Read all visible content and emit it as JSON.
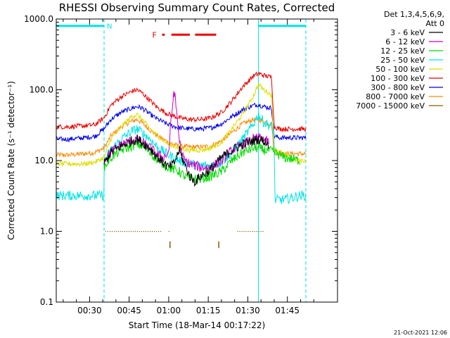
{
  "chart_data": {
    "type": "line",
    "title": "RHESSI Observing Summary Count Rates, Corrected",
    "xlabel": "Start Time (18-Mar-14 00:17:22)",
    "ylabel": "Corrected Count Rate (s⁻¹ detector⁻¹)",
    "yscale": "log",
    "ylim": [
      0.1,
      1000
    ],
    "xlim_minutes": [
      17.37,
      124.0
    ],
    "x_ticks": [
      {
        "m": 30,
        "label": "00:30"
      },
      {
        "m": 45,
        "label": "00:45"
      },
      {
        "m": 60,
        "label": "01:00"
      },
      {
        "m": 75,
        "label": "01:15"
      },
      {
        "m": 90,
        "label": "01:30"
      },
      {
        "m": 105,
        "label": "01:45"
      }
    ],
    "y_ticks": [
      {
        "v": 1000,
        "label": "1000.0"
      },
      {
        "v": 100,
        "label": "100.0"
      },
      {
        "v": 10,
        "label": "10.0"
      },
      {
        "v": 1,
        "label": "1.0"
      },
      {
        "v": 0.1,
        "label": "0.1"
      }
    ],
    "legend_header": [
      "Det 1,3,4,5,6,9,",
      "Att 0"
    ],
    "legend_position": "right",
    "footer_date": "21-Oct-2021 12:06",
    "night_label": "N",
    "flare_label": "F",
    "night_bands": [
      [
        17.37,
        35.5
      ],
      [
        94.0,
        112.0
      ]
    ],
    "night_bar_y": 800,
    "flare_segments": [
      [
        57.5,
        58.5
      ],
      [
        61.0,
        68.0
      ],
      [
        70.0,
        78.0
      ]
    ],
    "flare_bar_y": 600,
    "series": [
      {
        "name": "3 - 6 keV",
        "color": "#000000",
        "x": [
          35.5,
          38,
          42,
          46,
          48,
          50,
          53,
          55,
          57,
          60,
          62,
          64,
          66,
          68,
          70,
          72,
          75,
          78,
          80,
          84,
          88,
          92,
          94,
          96,
          98
        ],
        "values": [
          9,
          13,
          16,
          19,
          20,
          18,
          15,
          12,
          10,
          8,
          9,
          14,
          9,
          6,
          5,
          6,
          7,
          9,
          11,
          14,
          17,
          19,
          20,
          19,
          17
        ]
      },
      {
        "name": "6 - 12 keV",
        "color": "#cc00cc",
        "x": [
          35.5,
          38,
          42,
          46,
          48,
          50,
          53,
          56,
          58,
          60,
          61,
          62,
          63,
          64,
          65,
          66,
          68,
          72,
          76,
          80,
          84,
          88,
          92,
          94,
          98
        ],
        "values": [
          10,
          13,
          17,
          19,
          20,
          18,
          15,
          12,
          11,
          13,
          40,
          100,
          50,
          20,
          12,
          10,
          9,
          8,
          8,
          10,
          14,
          17,
          20,
          21,
          18
        ]
      },
      {
        "name": "12 - 25 keV",
        "color": "#00dd00",
        "x": [
          35.5,
          38,
          42,
          46,
          48,
          50,
          53,
          56,
          60,
          64,
          66,
          68,
          72,
          76,
          80,
          84,
          88,
          92,
          94,
          96,
          98,
          100,
          104,
          110
        ],
        "values": [
          8,
          11,
          14,
          16,
          17,
          16,
          13,
          10,
          8,
          7,
          6,
          5.5,
          5.5,
          6,
          7,
          10,
          13,
          15,
          15,
          14,
          14,
          13,
          11,
          10
        ]
      },
      {
        "name": "25 - 50 keV",
        "color": "#00e5e5",
        "x": [
          17.37,
          35.4,
          35.6,
          38,
          42,
          46,
          48,
          50,
          53,
          56,
          60,
          64,
          68,
          72,
          76,
          80,
          84,
          88,
          92,
          94,
          96,
          99,
          100,
          100.2,
          104,
          110,
          112
        ],
        "values": [
          3.2,
          3.2,
          10,
          14,
          20,
          26,
          28,
          25,
          20,
          15,
          12,
          10,
          9,
          8.5,
          8.5,
          9.5,
          13,
          20,
          32,
          45,
          35,
          30,
          25,
          2.8,
          2.8,
          3.2,
          3.2
        ]
      },
      {
        "name": "50 - 100 keV",
        "color": "#dddd00",
        "x": [
          17.37,
          22,
          28,
          32,
          35.5,
          38,
          42,
          46,
          48,
          50,
          53,
          56,
          60,
          64,
          68,
          72,
          76,
          80,
          84,
          88,
          92,
          94,
          96,
          99,
          100,
          104,
          108,
          112
        ],
        "values": [
          9,
          9,
          9,
          9.5,
          11,
          20,
          30,
          42,
          45,
          38,
          28,
          22,
          17,
          15,
          14,
          14,
          15,
          18,
          28,
          45,
          80,
          120,
          100,
          85,
          15,
          12,
          10,
          10
        ]
      },
      {
        "name": "100 - 300 keV",
        "color": "#ee0000",
        "x": [
          17.37,
          22,
          28,
          32,
          35.5,
          38,
          42,
          46,
          48,
          50,
          53,
          56,
          60,
          64,
          68,
          72,
          76,
          80,
          84,
          88,
          92,
          94,
          96,
          99,
          100,
          102,
          106,
          112
        ],
        "values": [
          30,
          30,
          31,
          32,
          40,
          60,
          80,
          95,
          100,
          90,
          70,
          55,
          45,
          40,
          38,
          38,
          40,
          48,
          70,
          110,
          155,
          170,
          160,
          150,
          30,
          28,
          28,
          28
        ]
      },
      {
        "name": "300 - 800 keV",
        "color": "#0000ee",
        "x": [
          17.37,
          22,
          28,
          32,
          35.5,
          38,
          42,
          46,
          48,
          50,
          53,
          56,
          60,
          64,
          68,
          72,
          76,
          80,
          84,
          88,
          92,
          94,
          96,
          99,
          100,
          102,
          106,
          112
        ],
        "values": [
          20,
          20,
          21,
          22,
          28,
          38,
          48,
          55,
          58,
          55,
          45,
          38,
          32,
          29,
          28,
          28,
          29,
          33,
          42,
          52,
          60,
          62,
          58,
          55,
          22,
          21,
          21,
          21
        ]
      },
      {
        "name": "800 - 7000 keV",
        "color": "#ff8800",
        "x": [
          17.37,
          22,
          28,
          32,
          35.5,
          38,
          42,
          46,
          48,
          50,
          53,
          56,
          60,
          64,
          68,
          72,
          76,
          80,
          84,
          88,
          92,
          94,
          96,
          99,
          100,
          102,
          106,
          112
        ],
        "values": [
          12,
          12,
          12.5,
          13,
          15,
          22,
          30,
          36,
          38,
          34,
          27,
          22,
          18,
          16,
          15.5,
          15.5,
          16,
          19,
          25,
          33,
          38,
          38,
          36,
          33,
          13,
          12.5,
          12.5,
          12.5
        ]
      },
      {
        "name": "7000 - 15000 keV",
        "color": "#806000",
        "x": [
          36,
          39,
          42,
          45,
          48,
          51,
          54,
          57,
          58,
          59,
          60,
          86,
          88,
          90,
          92,
          94,
          96
        ],
        "values": [
          1.0,
          1.0,
          1.0,
          1.0,
          1.0,
          1.0,
          1.0,
          1.0,
          1.0,
          0.6,
          0.6,
          1.0,
          1.0,
          1.0,
          1.0,
          1.0,
          1.0
        ]
      }
    ]
  }
}
